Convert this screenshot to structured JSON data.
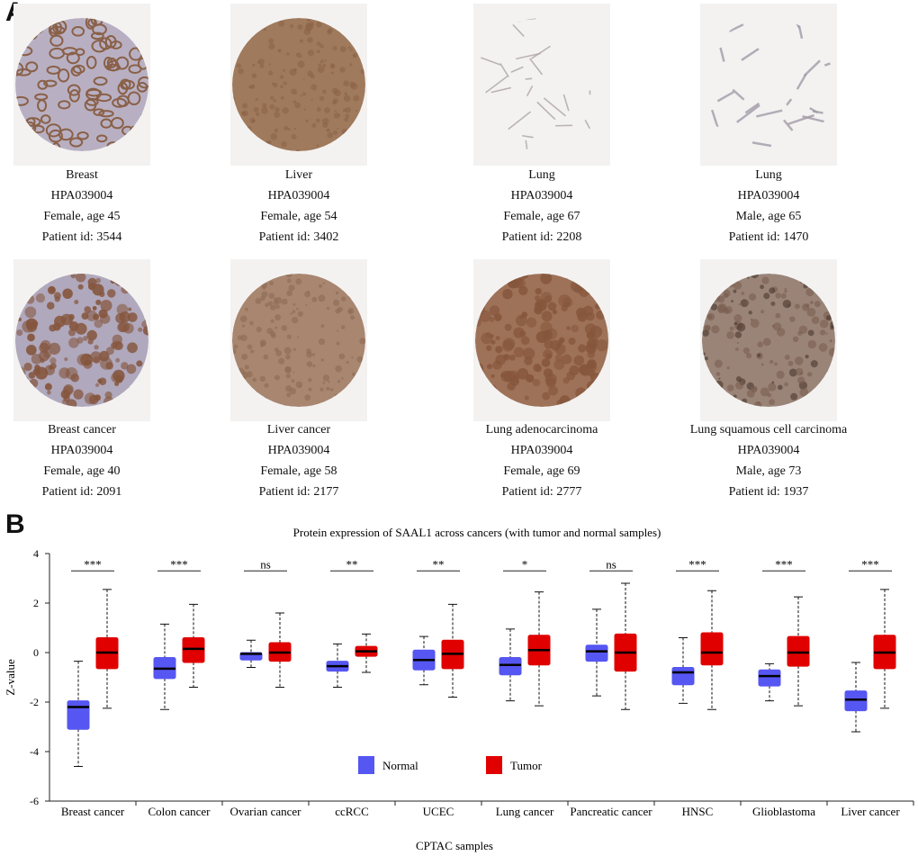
{
  "panel_a": {
    "label": "A",
    "tiles": [
      {
        "tissue": "Breast",
        "antibody": "HPA039004",
        "patient": "Female, age 45",
        "patient_id": "Patient id: 3544",
        "stain": "#8a6048",
        "bg": "#b8b0c2",
        "style": "glands"
      },
      {
        "tissue": "Liver",
        "antibody": "HPA039004",
        "patient": "Female, age 54",
        "patient_id": "Patient id: 3402",
        "stain": "#8c6248",
        "bg": "#a07a5c",
        "style": "dense"
      },
      {
        "tissue": "Lung",
        "antibody": "HPA039004",
        "patient": "Female, age 67",
        "patient_id": "Patient id: 2208",
        "stain": "#b0a2a8",
        "bg": "#f3f2f1",
        "style": "sparse"
      },
      {
        "tissue": "Lung",
        "antibody": "HPA039004",
        "patient": "Male, age 65",
        "patient_id": "Patient id: 1470",
        "stain": "#a39aa8",
        "bg": "#f3f2f1",
        "style": "web"
      },
      {
        "tissue": "Breast cancer",
        "antibody": "HPA039004",
        "patient": "Female, age 40",
        "patient_id": "Patient id: 2091",
        "stain": "#85563e",
        "bg": "#b0a8bc",
        "style": "tumor"
      },
      {
        "tissue": "Liver cancer",
        "antibody": "HPA039004",
        "patient": "Female, age 58",
        "patient_id": "Patient id: 2177",
        "stain": "#8e6a52",
        "bg": "#a88670",
        "style": "dense"
      },
      {
        "tissue": "Lung adenocarcinoma",
        "antibody": "HPA039004",
        "patient": "Female, age 69",
        "patient_id": "Patient id: 2777",
        "stain": "#86563c",
        "bg": "#9e7258",
        "style": "tumor"
      },
      {
        "tissue": "Lung squamous cell carcinoma",
        "antibody": "HPA039004",
        "patient": "Male, age 73",
        "patient_id": "Patient id: 1937",
        "stain": "#7a5e4e",
        "bg": "#9a8478",
        "style": "squamous"
      }
    ]
  },
  "panel_b": {
    "label": "B"
  },
  "chart_data": {
    "type": "box",
    "title": "Protein expression of SAAL1 across cancers (with tumor and normal samples)",
    "xlabel": "CPTAC samples",
    "ylabel": "Z-value",
    "ylim": [
      -6,
      4
    ],
    "yticks": [
      -6,
      -4,
      -2,
      0,
      2,
      4
    ],
    "colors": {
      "Normal": "#5656f2",
      "Tumor": "#e00000"
    },
    "legend": [
      "Normal",
      "Tumor"
    ],
    "legend_position": "bottom-center",
    "categories": [
      "Breast cancer",
      "Colon cancer",
      "Ovarian cancer",
      "ccRCC",
      "UCEC",
      "Lung cancer",
      "Pancreatic cancer",
      "HNSC",
      "Glioblastoma",
      "Liver cancer"
    ],
    "significance": [
      "***",
      "***",
      "ns",
      "**",
      "**",
      "*",
      "ns",
      "***",
      "***",
      "***"
    ],
    "series": [
      {
        "name": "Normal",
        "boxes": [
          {
            "min": -4.6,
            "q1": -3.1,
            "median": -2.2,
            "q3": -1.95,
            "max": -0.35
          },
          {
            "min": -2.3,
            "q1": -1.05,
            "median": -0.65,
            "q3": -0.2,
            "max": 1.15
          },
          {
            "min": -0.6,
            "q1": -0.3,
            "median": -0.05,
            "q3": 0.0,
            "max": 0.5
          },
          {
            "min": -1.4,
            "q1": -0.75,
            "median": -0.55,
            "q3": -0.35,
            "max": 0.35
          },
          {
            "min": -1.3,
            "q1": -0.7,
            "median": -0.3,
            "q3": 0.1,
            "max": 0.65
          },
          {
            "min": -1.95,
            "q1": -0.9,
            "median": -0.5,
            "q3": -0.2,
            "max": 0.95
          },
          {
            "min": -1.75,
            "q1": -0.35,
            "median": 0.05,
            "q3": 0.3,
            "max": 1.75
          },
          {
            "min": -2.05,
            "q1": -1.3,
            "median": -0.8,
            "q3": -0.6,
            "max": 0.6
          },
          {
            "min": -1.95,
            "q1": -1.35,
            "median": -0.95,
            "q3": -0.7,
            "max": -0.45
          },
          {
            "min": -3.2,
            "q1": -2.35,
            "median": -1.9,
            "q3": -1.55,
            "max": -0.4
          }
        ]
      },
      {
        "name": "Tumor",
        "boxes": [
          {
            "min": -2.25,
            "q1": -0.65,
            "median": 0.0,
            "q3": 0.6,
            "max": 2.55
          },
          {
            "min": -1.4,
            "q1": -0.4,
            "median": 0.15,
            "q3": 0.6,
            "max": 1.95
          },
          {
            "min": -1.4,
            "q1": -0.35,
            "median": 0.0,
            "q3": 0.4,
            "max": 1.6
          },
          {
            "min": -0.8,
            "q1": -0.15,
            "median": 0.05,
            "q3": 0.25,
            "max": 0.75
          },
          {
            "min": -1.8,
            "q1": -0.65,
            "median": -0.05,
            "q3": 0.5,
            "max": 1.95
          },
          {
            "min": -2.15,
            "q1": -0.5,
            "median": 0.1,
            "q3": 0.7,
            "max": 2.45
          },
          {
            "min": -2.3,
            "q1": -0.75,
            "median": 0.0,
            "q3": 0.75,
            "max": 2.8
          },
          {
            "min": -2.3,
            "q1": -0.5,
            "median": 0.0,
            "q3": 0.8,
            "max": 2.5
          },
          {
            "min": -2.15,
            "q1": -0.55,
            "median": 0.0,
            "q3": 0.65,
            "max": 2.25
          },
          {
            "min": -2.25,
            "q1": -0.65,
            "median": 0.0,
            "q3": 0.7,
            "max": 2.55
          }
        ]
      }
    ]
  }
}
